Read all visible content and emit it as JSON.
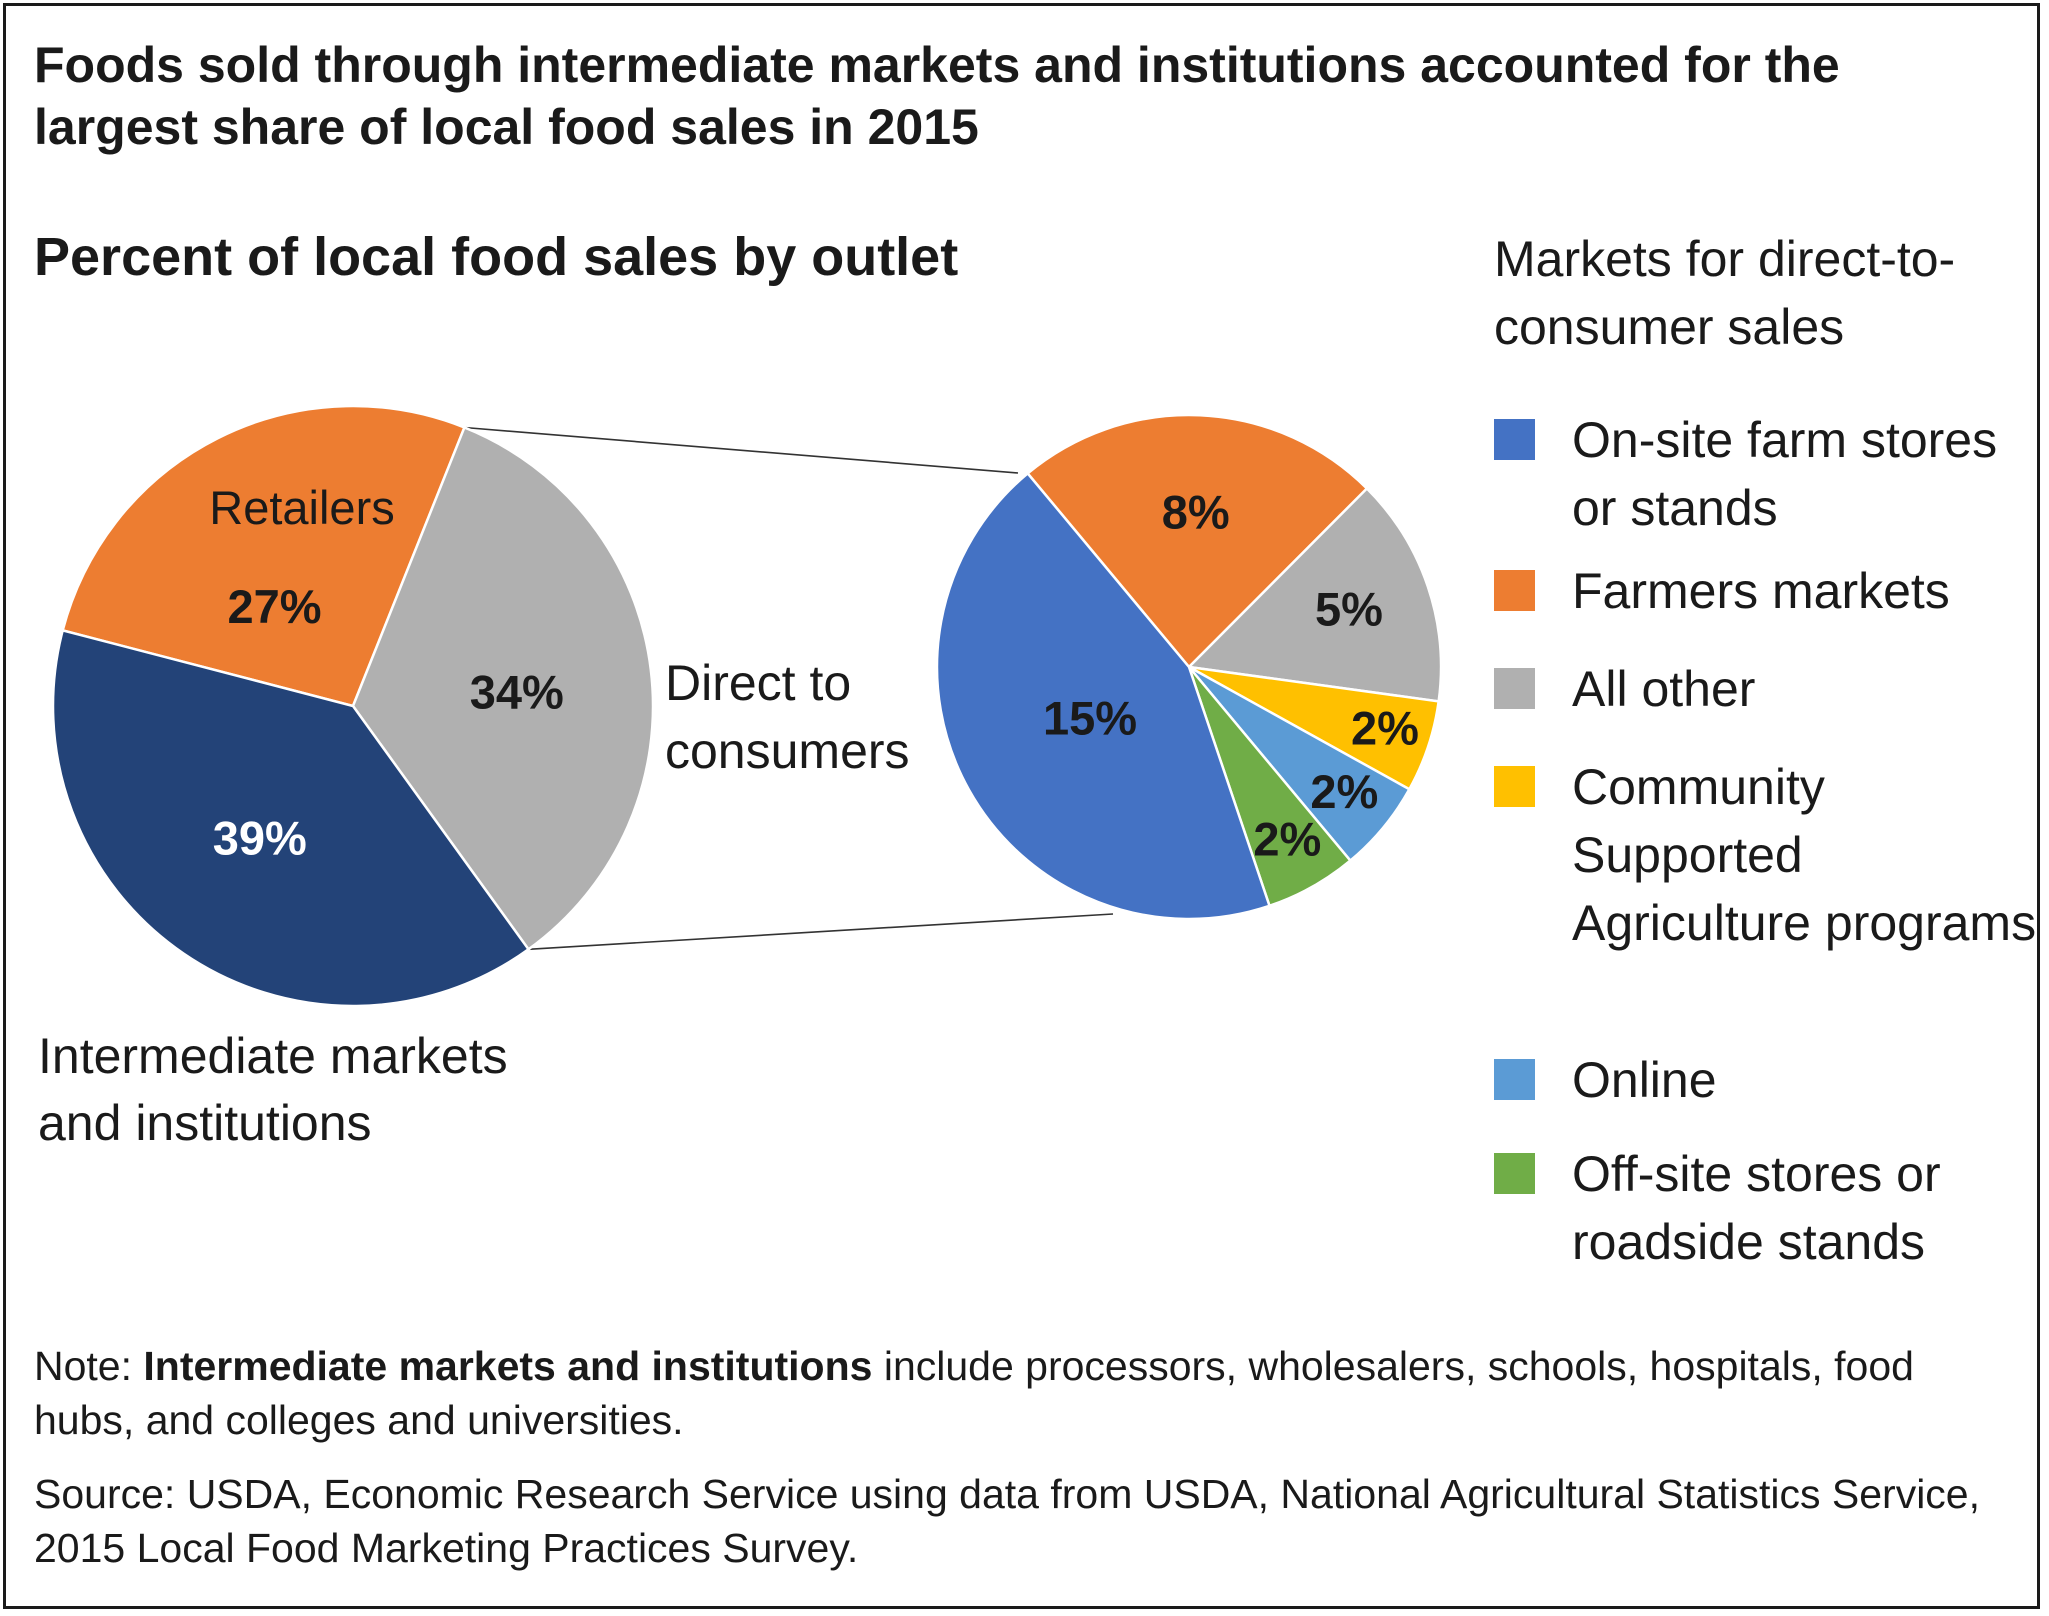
{
  "title": "Foods sold through intermediate markets and institutions accounted for the largest share of local food sales in 2015",
  "subtitle": "Percent of local food sales by outlet",
  "legend_title": "Markets for direct-to-consumer sales",
  "note_prefix": "Note: ",
  "note_bold": "Intermediate markets and institutions",
  "note_rest": " include processors, wholesalers, schools, hospitals, food hubs, and colleges and universities.",
  "source": "Source: USDA, Economic Research Service using data from USDA, National Agricultural Statistics Service, 2015 Local Food Marketing Practices Survey.",
  "chart_data": [
    {
      "type": "pie",
      "slices": [
        {
          "name": "Retailers",
          "value": 27,
          "label": "27%",
          "color": "#ed7d31"
        },
        {
          "name": "Direct to consumers",
          "value": 34,
          "label": "34%",
          "color": "#b0b0b0"
        },
        {
          "name": "Intermediate markets and institutions",
          "value": 39,
          "label": "39%",
          "color": "#234378"
        }
      ],
      "legend": "outside labels",
      "annotations": [
        "Retailers",
        "Direct to consumers",
        "Intermediate markets and institutions"
      ]
    },
    {
      "type": "pie",
      "breakout_of": "Direct to consumers",
      "slices": [
        {
          "name": "Farmers markets",
          "value": 8,
          "label": "8%",
          "color": "#ed7d31"
        },
        {
          "name": "All other",
          "value": 5,
          "label": "5%",
          "color": "#b0b0b0"
        },
        {
          "name": "Community Supported Agriculture programs",
          "value": 2,
          "label": "2%",
          "color": "#ffc000"
        },
        {
          "name": "Online",
          "value": 2,
          "label": "2%",
          "color": "#5b9bd5"
        },
        {
          "name": "Off-site stores or roadside stands",
          "value": 2,
          "label": "2%",
          "color": "#70ad47"
        },
        {
          "name": "On-site farm stores or stands",
          "value": 15,
          "label": "15%",
          "color": "#4472c4"
        }
      ],
      "legend": "right"
    }
  ],
  "legend_items": [
    {
      "label": "On-site farm stores or stands",
      "color": "#4472c4"
    },
    {
      "label": "Farmers markets",
      "color": "#ed7d31"
    },
    {
      "label": "All other",
      "color": "#b0b0b0"
    },
    {
      "label": "Community Supported Agriculture programs",
      "color": "#ffc000"
    },
    {
      "label": "Online",
      "color": "#5b9bd5"
    },
    {
      "label": "Off-site stores or roadside stands",
      "color": "#70ad47"
    }
  ],
  "annotations": {
    "retailers": "Retailers",
    "direct_line1": "Direct to",
    "direct_line2": "consumers",
    "intermediate_line1": "Intermediate markets",
    "intermediate_line2": "and institutions"
  }
}
